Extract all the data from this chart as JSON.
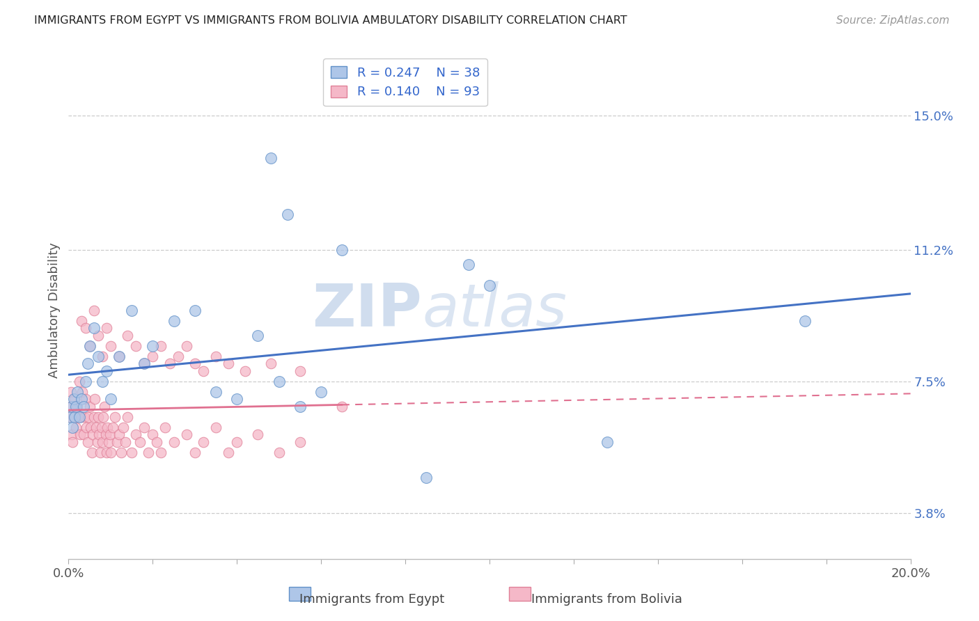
{
  "title": "IMMIGRANTS FROM EGYPT VS IMMIGRANTS FROM BOLIVIA AMBULATORY DISABILITY CORRELATION CHART",
  "source": "Source: ZipAtlas.com",
  "ylabel": "Ambulatory Disability",
  "y_ticks": [
    3.8,
    7.5,
    11.2,
    15.0
  ],
  "xlim": [
    0.0,
    20.0
  ],
  "ylim": [
    2.5,
    16.5
  ],
  "egypt_R": 0.247,
  "egypt_N": 38,
  "bolivia_R": 0.14,
  "bolivia_N": 93,
  "egypt_color": "#aec6e8",
  "bolivia_color": "#f5b8c8",
  "egypt_edge_color": "#6090c8",
  "bolivia_edge_color": "#e08098",
  "egypt_line_color": "#4472c4",
  "bolivia_line_color": "#e07090",
  "watermark": "ZIPatlas",
  "egypt_x": [
    0.05,
    0.08,
    0.1,
    0.12,
    0.15,
    0.18,
    0.2,
    0.25,
    0.3,
    0.35,
    0.4,
    0.45,
    0.5,
    0.6,
    0.7,
    0.8,
    0.9,
    1.0,
    1.2,
    1.5,
    1.8,
    2.0,
    2.5,
    3.0,
    3.5,
    4.0,
    4.5,
    5.0,
    5.5,
    6.0,
    4.8,
    5.2,
    6.5,
    8.5,
    10.0,
    12.8,
    17.5,
    9.5
  ],
  "egypt_y": [
    6.5,
    6.8,
    6.2,
    7.0,
    6.5,
    6.8,
    7.2,
    6.5,
    7.0,
    6.8,
    7.5,
    8.0,
    8.5,
    9.0,
    8.2,
    7.5,
    7.8,
    7.0,
    8.2,
    9.5,
    8.0,
    8.5,
    9.2,
    9.5,
    7.2,
    7.0,
    8.8,
    7.5,
    6.8,
    7.2,
    13.8,
    12.2,
    11.2,
    4.8,
    10.2,
    5.8,
    9.2,
    10.8
  ],
  "bolivia_x": [
    0.02,
    0.04,
    0.06,
    0.08,
    0.1,
    0.12,
    0.15,
    0.18,
    0.2,
    0.22,
    0.25,
    0.28,
    0.3,
    0.32,
    0.35,
    0.38,
    0.4,
    0.42,
    0.45,
    0.48,
    0.5,
    0.52,
    0.55,
    0.58,
    0.6,
    0.62,
    0.65,
    0.68,
    0.7,
    0.72,
    0.75,
    0.78,
    0.8,
    0.82,
    0.85,
    0.88,
    0.9,
    0.92,
    0.95,
    0.98,
    1.0,
    1.05,
    1.1,
    1.15,
    1.2,
    1.25,
    1.3,
    1.35,
    1.4,
    1.5,
    1.6,
    1.7,
    1.8,
    1.9,
    2.0,
    2.1,
    2.2,
    2.3,
    2.5,
    2.8,
    3.0,
    3.2,
    3.5,
    3.8,
    4.0,
    4.5,
    5.0,
    5.5,
    0.3,
    0.4,
    0.5,
    0.6,
    0.7,
    0.8,
    0.9,
    1.0,
    1.2,
    1.4,
    1.6,
    1.8,
    2.0,
    2.2,
    2.4,
    2.6,
    2.8,
    3.0,
    3.2,
    3.5,
    3.8,
    4.2,
    4.8,
    5.5,
    6.5
  ],
  "bolivia_y": [
    6.5,
    6.8,
    7.2,
    6.0,
    5.8,
    6.5,
    7.0,
    6.2,
    6.8,
    6.5,
    7.5,
    6.0,
    6.5,
    7.2,
    6.0,
    6.5,
    7.0,
    6.2,
    5.8,
    6.5,
    6.8,
    6.2,
    5.5,
    6.0,
    6.5,
    7.0,
    6.2,
    5.8,
    6.5,
    6.0,
    5.5,
    6.2,
    5.8,
    6.5,
    6.8,
    6.0,
    5.5,
    6.2,
    5.8,
    6.0,
    5.5,
    6.2,
    6.5,
    5.8,
    6.0,
    5.5,
    6.2,
    5.8,
    6.5,
    5.5,
    6.0,
    5.8,
    6.2,
    5.5,
    6.0,
    5.8,
    5.5,
    6.2,
    5.8,
    6.0,
    5.5,
    5.8,
    6.2,
    5.5,
    5.8,
    6.0,
    5.5,
    5.8,
    9.2,
    9.0,
    8.5,
    9.5,
    8.8,
    8.2,
    9.0,
    8.5,
    8.2,
    8.8,
    8.5,
    8.0,
    8.2,
    8.5,
    8.0,
    8.2,
    8.5,
    8.0,
    7.8,
    8.2,
    8.0,
    7.8,
    8.0,
    7.8,
    6.8
  ]
}
